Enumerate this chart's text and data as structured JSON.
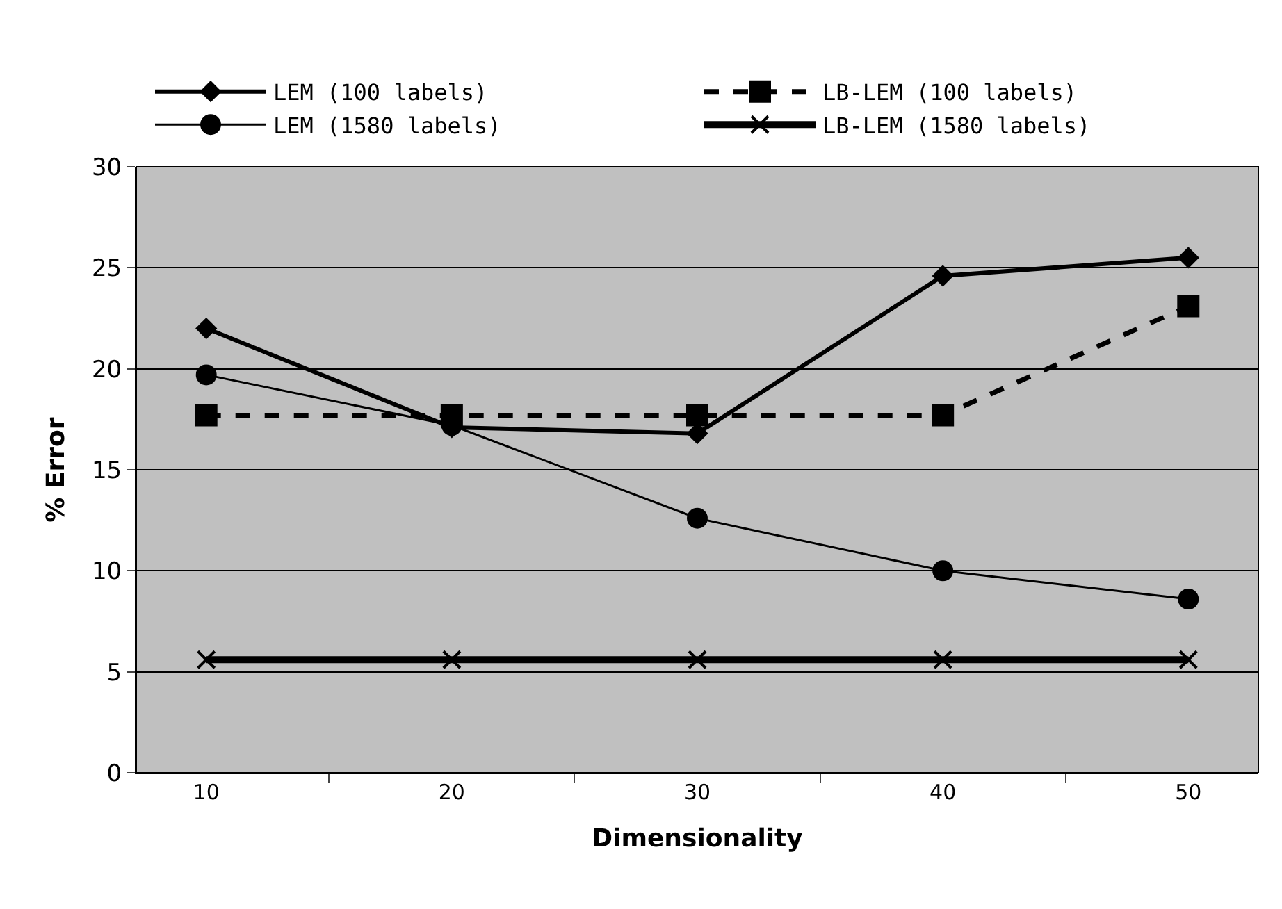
{
  "chart_data": {
    "type": "line",
    "xlabel": "Dimensionality",
    "ylabel": "% Error",
    "categories": [
      "10",
      "20",
      "30",
      "40",
      "50"
    ],
    "series": [
      {
        "name": "LEM (100 labels)",
        "color": "#000000",
        "marker": "diamond",
        "line_style": "solid",
        "values": [
          22,
          17.1,
          16.8,
          24.6,
          25.5
        ]
      },
      {
        "name": "LB-LEM (100 labels)",
        "color": "#000000",
        "marker": "square",
        "line_style": "dashed",
        "values": [
          17.7,
          17.7,
          17.7,
          17.7,
          23.1
        ]
      },
      {
        "name": "LEM (1580 labels)",
        "color": "#000000",
        "marker": "circle",
        "line_style": "solid",
        "values": [
          19.7,
          17.2,
          12.6,
          10,
          8.6
        ]
      },
      {
        "name": "LB-LEM (1580 labels)",
        "color": "#000000",
        "marker": "cross",
        "line_style": "solid",
        "values": [
          5.6,
          5.6,
          5.6,
          5.6,
          5.6
        ]
      }
    ],
    "ylim": [
      0,
      30
    ],
    "yticks": [
      0,
      5,
      10,
      15,
      20,
      25,
      30
    ],
    "grid": "y",
    "legend": "top"
  }
}
